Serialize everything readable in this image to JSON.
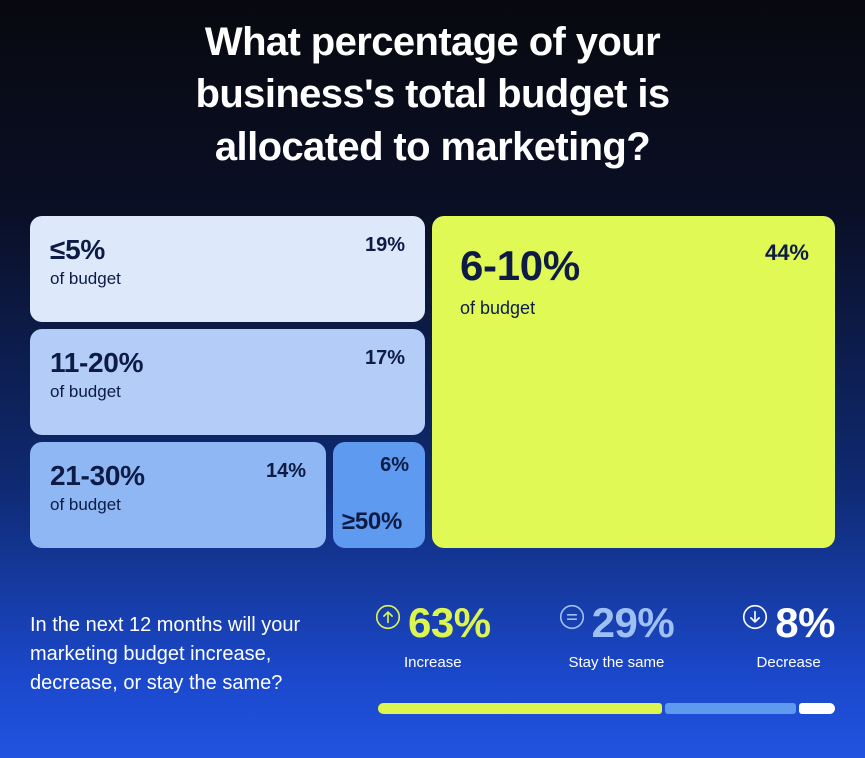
{
  "title": "What percentage of your business's total budget is allocated to marketing?",
  "treemap": {
    "cards": [
      {
        "label": "≤5%",
        "sub": "of budget",
        "pct": "19%"
      },
      {
        "label": "11-20%",
        "sub": "of budget",
        "pct": "17%"
      },
      {
        "label": "21-30%",
        "sub": "of budget",
        "pct": "14%"
      },
      {
        "label": "≥50%",
        "sub": "",
        "pct": "6%"
      },
      {
        "label": "6-10%",
        "sub": "of budget",
        "pct": "44%"
      }
    ]
  },
  "followup": {
    "question": "In the next 12 months will your marketing budget increase, decrease, or stay the same?",
    "stats": [
      {
        "icon": "arrow-up-circle-icon",
        "pct": "63%",
        "label": "Increase",
        "value": 63,
        "color": "#ddf64f"
      },
      {
        "icon": "equals-circle-icon",
        "pct": "29%",
        "label": "Stay the same",
        "value": 29,
        "color": "#9fc0f5"
      },
      {
        "icon": "arrow-down-circle-icon",
        "pct": "8%",
        "label": "Decrease",
        "value": 8,
        "color": "#ffffff"
      }
    ]
  },
  "colors": {
    "background_top": "#08090f",
    "background_bottom": "#2153e0",
    "card_le5": "#dde9fb",
    "card_11_20": "#b3cdf8",
    "card_21_30": "#8fb7f4",
    "card_ge50": "#5d9af0",
    "card_6_10": "#e0f955",
    "card_text": "#0d1b45",
    "accent_green": "#ddf64f",
    "accent_blue": "#9fc0f5",
    "text_white": "#ffffff"
  },
  "chart_data": [
    {
      "type": "treemap",
      "title": "What percentage of your business's total budget is allocated to marketing?",
      "categories": [
        "≤5% of budget",
        "6-10% of budget",
        "11-20% of budget",
        "21-30% of budget",
        "≥50% of budget"
      ],
      "values": [
        19,
        44,
        17,
        14,
        6
      ],
      "unit": "%"
    },
    {
      "type": "bar",
      "title": "In the next 12 months will your marketing budget increase, decrease, or stay the same?",
      "categories": [
        "Increase",
        "Stay the same",
        "Decrease"
      ],
      "values": [
        63,
        29,
        8
      ],
      "unit": "%",
      "legend_position": "none",
      "orientation": "horizontal-stacked"
    }
  ]
}
